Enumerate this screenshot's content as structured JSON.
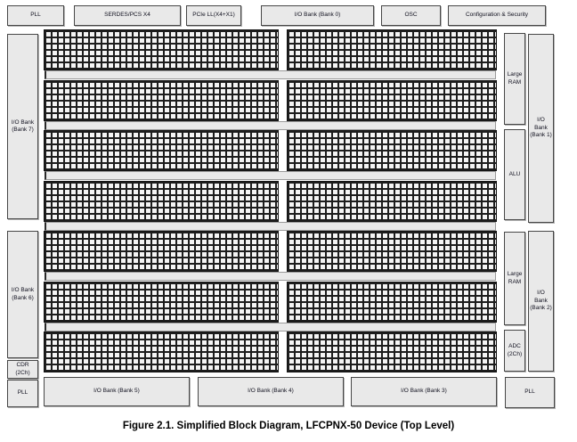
{
  "caption": "Figure 2.1. Simplified Block Diagram, LFCPNX-50 Device (Top Level)",
  "top_row": {
    "pll": "PLL",
    "serdes": "SERDES/PCS X4",
    "pcie": "PCIe LL(X4+X1)",
    "io_bank_0": "I/O Bank (Bank 0)",
    "osc": "OSC",
    "config_security": "Configuration & Security"
  },
  "left_column": {
    "io_bank_7": "I/O Bank (Bank 7)",
    "io_bank_6": "I/O Bank (Bank 6)",
    "cdr": "CDR (2Ch)",
    "pll": "PLL"
  },
  "inner_right_column": {
    "large_ram_top": "Large RAM",
    "alu": "ALU",
    "large_ram_bottom": "Large RAM",
    "adc": "ADC (2Ch)"
  },
  "right_column": {
    "io_bank_1": "I/O Bank (Bank 1)",
    "io_bank_2": "I/O Bank (Bank 2)",
    "pll": "PLL"
  },
  "bottom_row": {
    "io_bank_5": "I/O Bank (Bank 5)",
    "io_bank_4": "I/O Bank (Bank 4)",
    "io_bank_3": "I/O Bank (Bank 3)"
  },
  "fabric": {
    "rows": 7,
    "halves_per_row": 2,
    "content": "logic cell grid"
  },
  "colors": {
    "block_fill": "#e9e9e9",
    "block_border": "#474747",
    "grid_line": "#1d1d1d",
    "strip_fill": "#e9e9e9",
    "background": "#ffffff",
    "text": "#10101e"
  }
}
